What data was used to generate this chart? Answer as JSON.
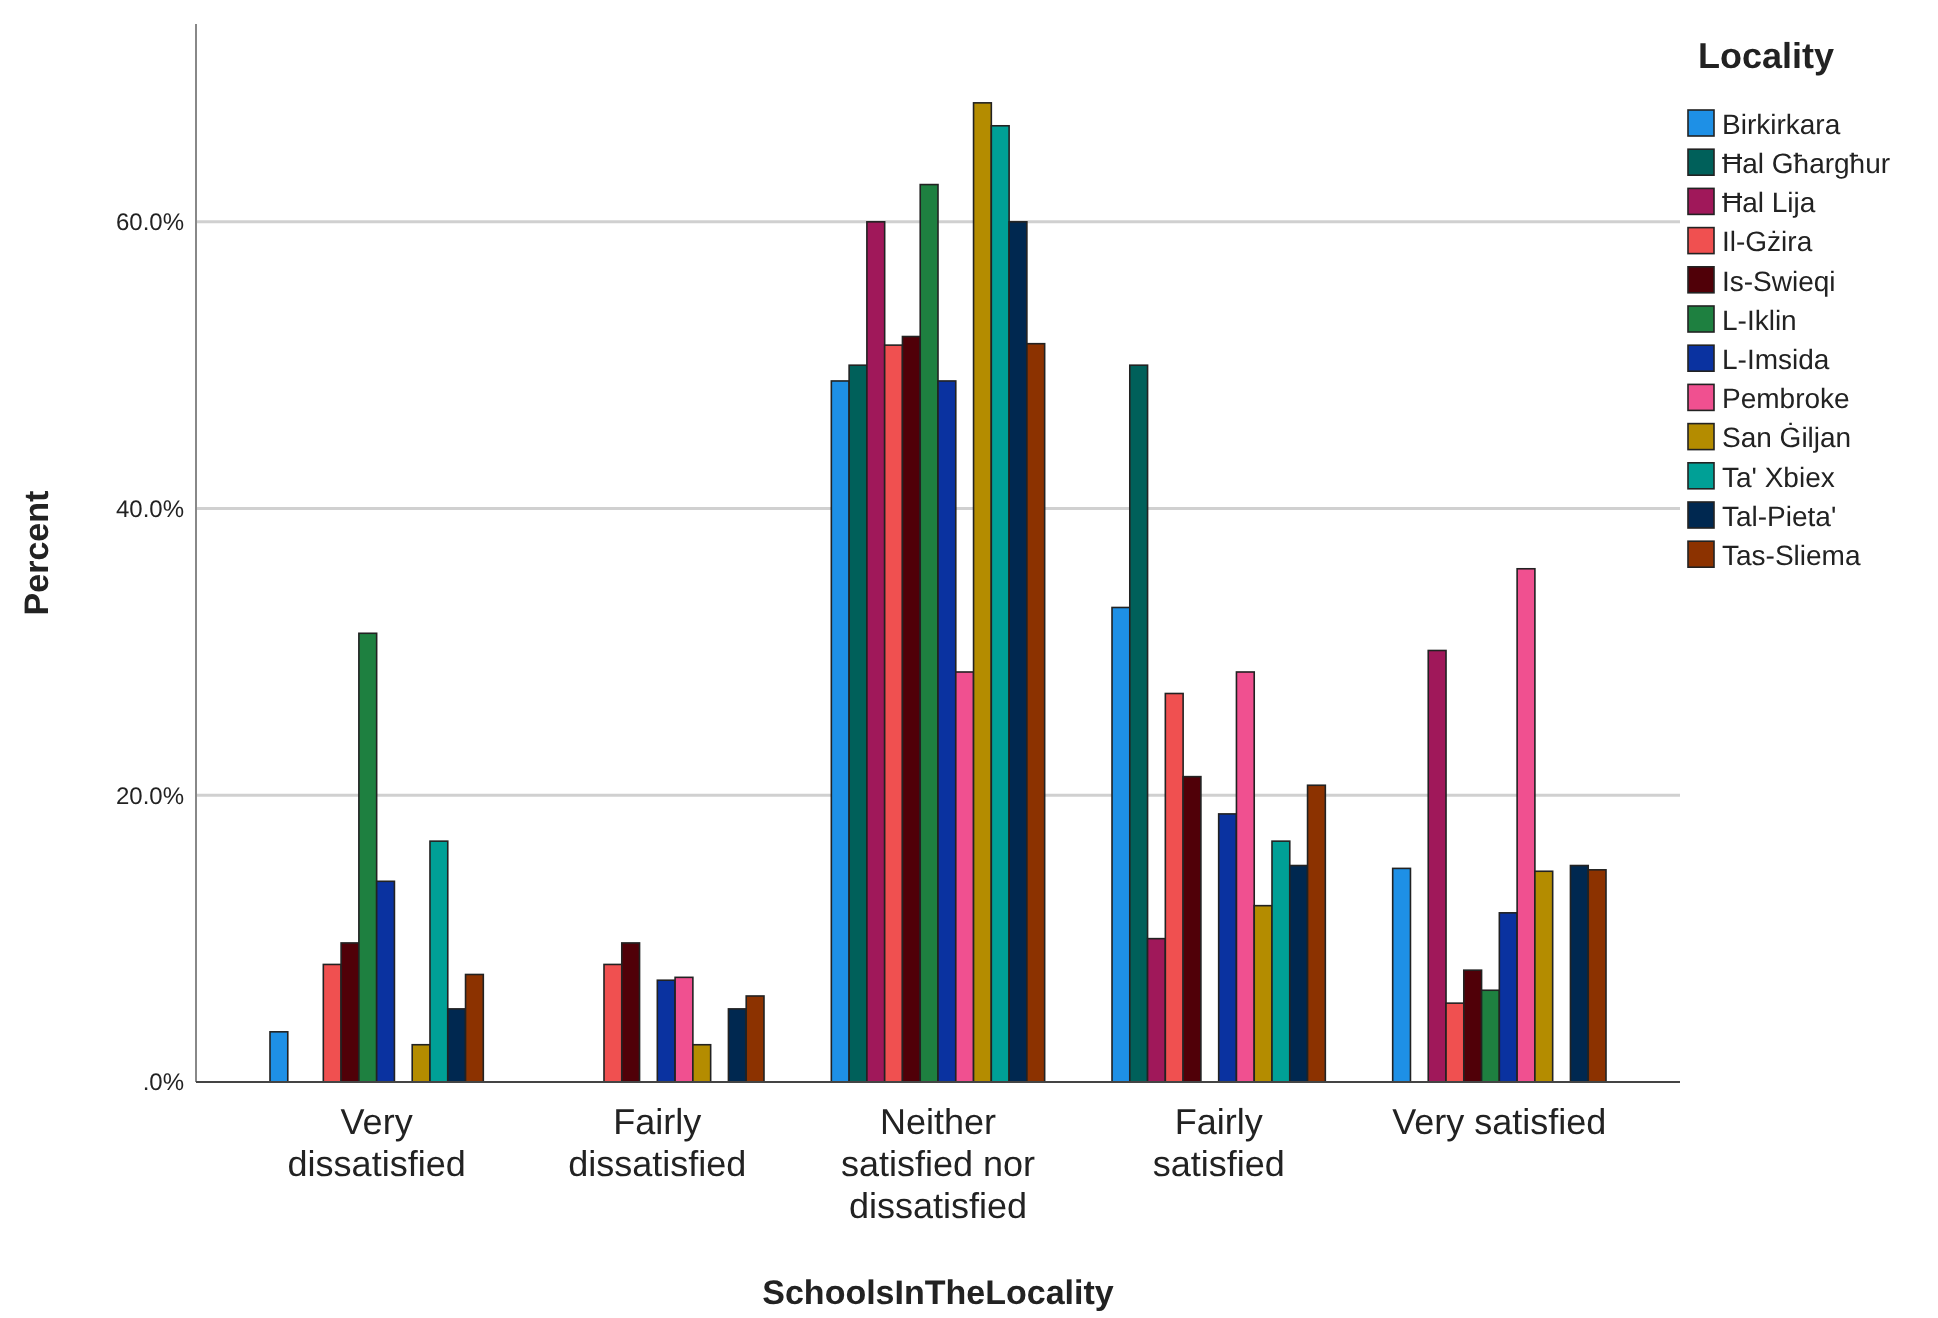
{
  "chart_data": {
    "type": "bar",
    "xlabel": "SchoolsInTheLocality",
    "ylabel": "Percent",
    "legend_title": "Locality",
    "legend": "right",
    "grid": "y",
    "categories": [
      "Very dissatisfied",
      "Fairly dissatisfied",
      "Neither satisfied nor dissatisfied",
      "Fairly satisfied",
      "Very satisfied"
    ],
    "ylim": [
      0,
      73.8
    ],
    "yticks": [
      {
        "value": 0,
        "label": ".0%"
      },
      {
        "value": 20,
        "label": "20.0%"
      },
      {
        "value": 40,
        "label": "40.0%"
      },
      {
        "value": 60,
        "label": "60.0%"
      }
    ],
    "series": [
      {
        "name": "Birkirkara",
        "color": "#1e90e6",
        "values": [
          3.5,
          0,
          48.9,
          33.1,
          14.9
        ]
      },
      {
        "name": "Ħal Għargħur",
        "color": "#00605a",
        "values": [
          0,
          0,
          50.0,
          50.0,
          0
        ]
      },
      {
        "name": "Ħal Lija",
        "color": "#a0185a",
        "values": [
          0,
          0,
          60.0,
          10.0,
          30.1
        ]
      },
      {
        "name": "Il-Gżira",
        "color": "#f05050",
        "values": [
          8.2,
          8.2,
          51.4,
          27.1,
          5.5
        ]
      },
      {
        "name": "Is-Swieqi",
        "color": "#500008",
        "values": [
          9.7,
          9.7,
          52.0,
          21.3,
          7.8
        ]
      },
      {
        "name": "L-Iklin",
        "color": "#1e8040",
        "values": [
          31.3,
          0,
          62.6,
          0,
          6.4
        ]
      },
      {
        "name": "L-Imsida",
        "color": "#0a32a0",
        "values": [
          14.0,
          7.1,
          48.9,
          18.7,
          11.8
        ]
      },
      {
        "name": "Pembroke",
        "color": "#f05090",
        "values": [
          0,
          7.3,
          28.6,
          28.6,
          35.8
        ]
      },
      {
        "name": "San Ġiljan",
        "color": "#b48c00",
        "values": [
          2.6,
          2.6,
          68.3,
          12.3,
          14.7
        ]
      },
      {
        "name": "Ta' Xbiex",
        "color": "#00a096",
        "values": [
          16.8,
          0,
          66.7,
          16.8,
          0
        ]
      },
      {
        "name": "Tal-Pieta'",
        "color": "#002850",
        "values": [
          5.1,
          5.1,
          60.0,
          15.1,
          15.1
        ]
      },
      {
        "name": "Tas-Sliema",
        "color": "#8c3200",
        "values": [
          7.5,
          6.0,
          51.5,
          20.7,
          14.8
        ]
      }
    ]
  }
}
